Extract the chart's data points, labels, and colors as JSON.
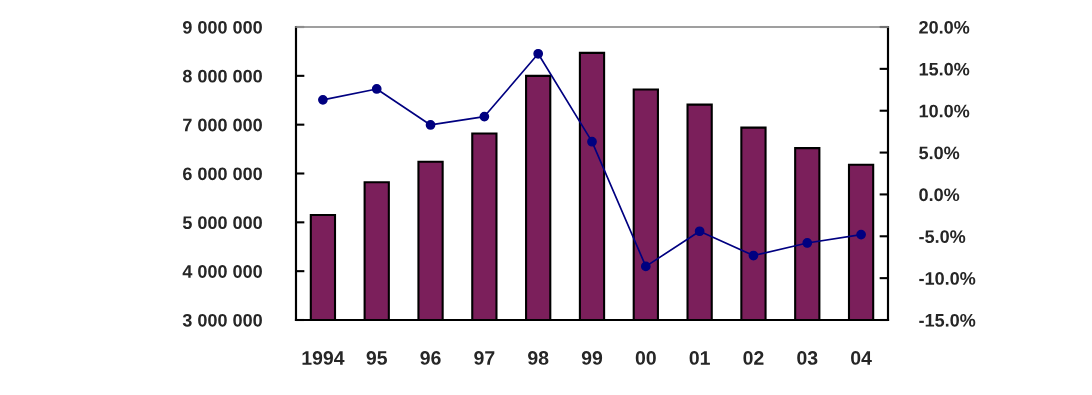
{
  "chart_data": {
    "type": "bar",
    "categories": [
      "1994",
      "95",
      "96",
      "97",
      "98",
      "99",
      "00",
      "01",
      "02",
      "03",
      "04"
    ],
    "series": [
      {
        "color": "#7b1f5b",
        "values": [
          5150000,
          5820000,
          6240000,
          6820000,
          8000000,
          8470000,
          7720000,
          7410000,
          6940000,
          6520000,
          6180000
        ]
      },
      {
        "type": "line",
        "axis": "y2",
        "color": "#000080",
        "marker": "circle",
        "line_style": "solid",
        "values": [
          11.3,
          12.6,
          8.3,
          9.3,
          16.8,
          6.3,
          -8.6,
          -4.4,
          -7.3,
          -5.8,
          -4.8
        ]
      }
    ],
    "ylim": [
      3000000,
      9000000
    ],
    "yticks": [
      {
        "value": 3000000,
        "label": "3 000 000"
      },
      {
        "value": 4000000,
        "label": "4 000 000"
      },
      {
        "value": 5000000,
        "label": "5 000 000"
      },
      {
        "value": 6000000,
        "label": "6 000 000"
      },
      {
        "value": 7000000,
        "label": "7 000 000"
      },
      {
        "value": 8000000,
        "label": "8 000 000"
      },
      {
        "value": 9000000,
        "label": "9 000 000"
      }
    ],
    "y2lim": [
      -15,
      20
    ],
    "y2ticks": [
      {
        "value": -15,
        "label": "-15.0%"
      },
      {
        "value": -10,
        "label": "-10.0%"
      },
      {
        "value": -5,
        "label": "-5.0%"
      },
      {
        "value": 0,
        "label": "0.0%"
      },
      {
        "value": 5,
        "label": "5.0%"
      },
      {
        "value": 10,
        "label": "10.0%"
      },
      {
        "value": 15,
        "label": "15.0%"
      },
      {
        "value": 20,
        "label": "20.0%"
      }
    ],
    "grid": false
  }
}
